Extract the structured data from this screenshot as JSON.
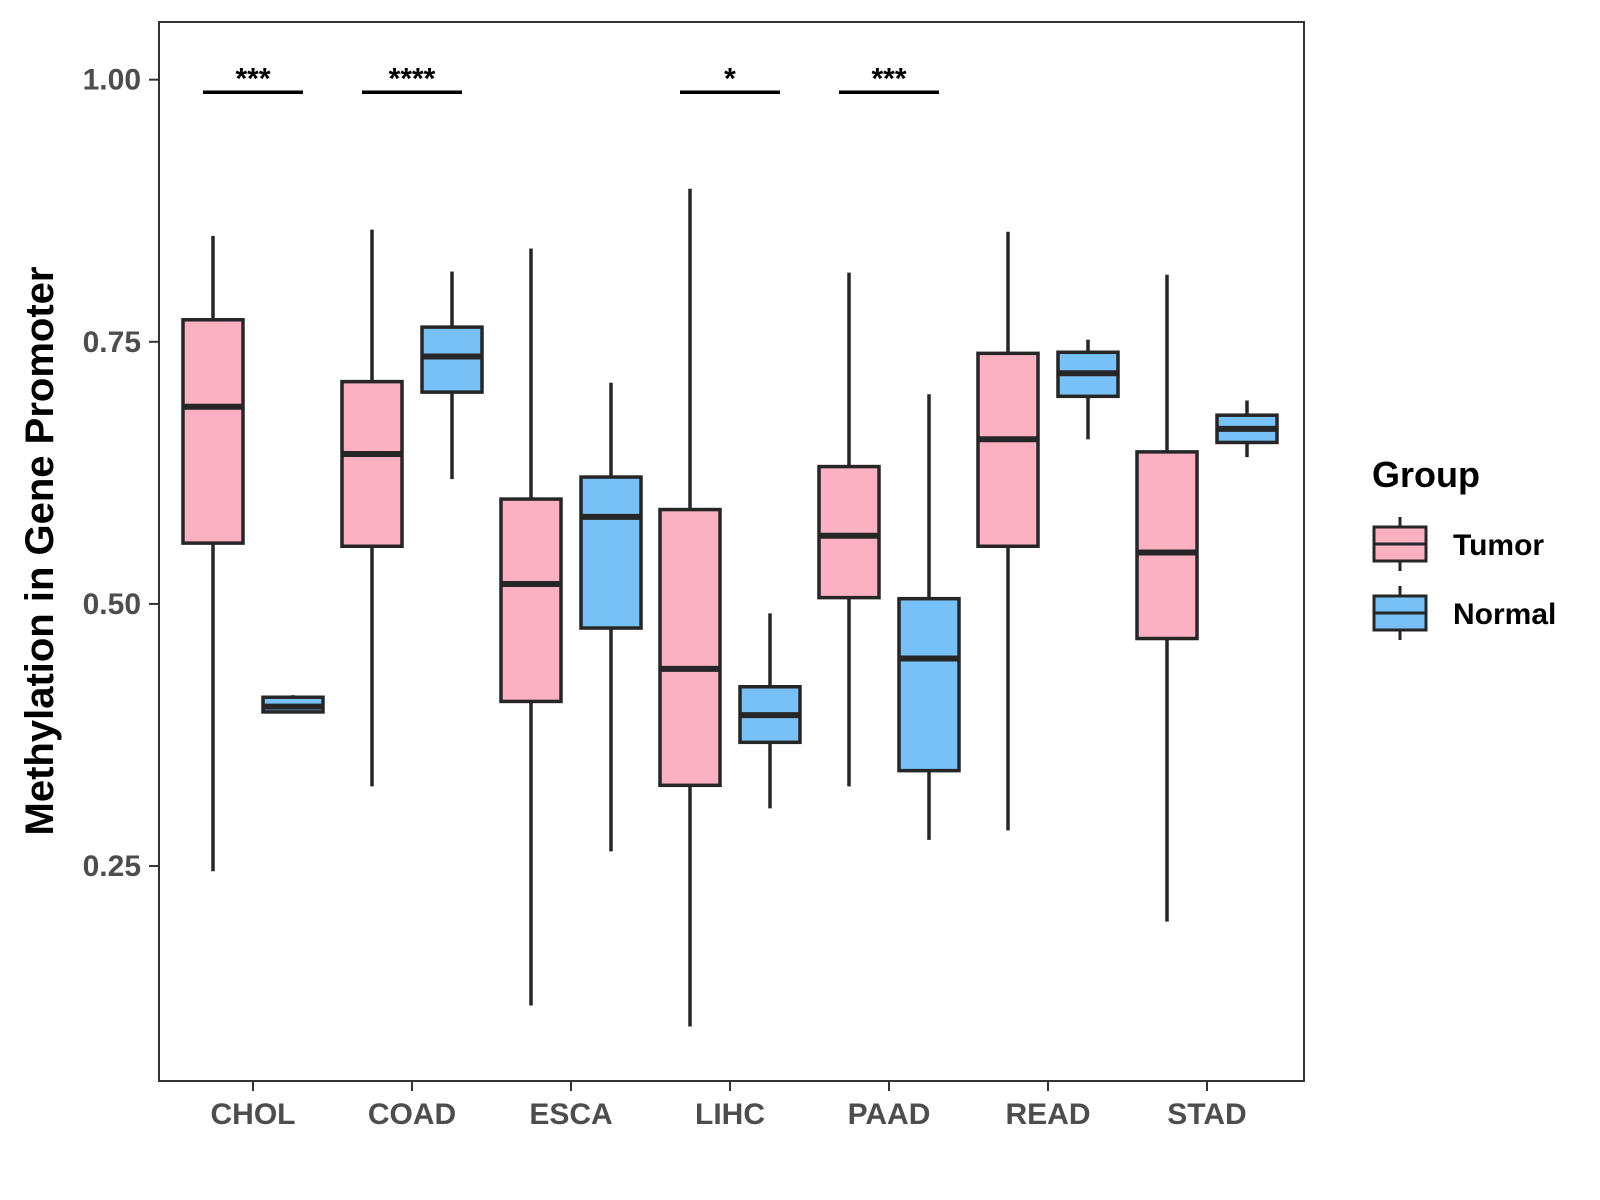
{
  "chart_data": {
    "type": "boxplot",
    "title": "",
    "xlabel": "",
    "ylabel": "Methylation in Gene Promoter",
    "ylim": [
      0.045,
      1.055
    ],
    "yticks": [
      0.25,
      0.5,
      0.75,
      1.0
    ],
    "ytick_labels": [
      "0.25",
      "0.50",
      "0.75",
      "1.00"
    ],
    "categories": [
      "CHOL",
      "COAD",
      "ESCA",
      "LIHC",
      "PAAD",
      "READ",
      "STAD"
    ],
    "legend": {
      "title": "Group",
      "position": "right",
      "entries": [
        {
          "name": "Tumor",
          "color": "#FBB1C1"
        },
        {
          "name": "Normal",
          "color": "#77C1F7"
        }
      ]
    },
    "series": [
      {
        "name": "Tumor",
        "color": "#FBB1C1",
        "boxes": [
          {
            "min": 0.245,
            "q1": 0.558,
            "median": 0.688,
            "q3": 0.771,
            "max": 0.851
          },
          {
            "min": 0.326,
            "q1": 0.555,
            "median": 0.643,
            "q3": 0.712,
            "max": 0.857
          },
          {
            "min": 0.117,
            "q1": 0.407,
            "median": 0.519,
            "q3": 0.6,
            "max": 0.839
          },
          {
            "min": 0.097,
            "q1": 0.327,
            "median": 0.438,
            "q3": 0.59,
            "max": 0.896
          },
          {
            "min": 0.326,
            "q1": 0.506,
            "median": 0.565,
            "q3": 0.631,
            "max": 0.816
          },
          {
            "min": 0.284,
            "q1": 0.555,
            "median": 0.657,
            "q3": 0.739,
            "max": 0.855
          },
          {
            "min": 0.197,
            "q1": 0.467,
            "median": 0.549,
            "q3": 0.645,
            "max": 0.814
          }
        ]
      },
      {
        "name": "Normal",
        "color": "#77C1F7",
        "boxes": [
          {
            "min": 0.397,
            "q1": 0.397,
            "median": 0.402,
            "q3": 0.411,
            "max": 0.413
          },
          {
            "min": 0.619,
            "q1": 0.702,
            "median": 0.736,
            "q3": 0.764,
            "max": 0.817
          },
          {
            "min": 0.264,
            "q1": 0.477,
            "median": 0.583,
            "q3": 0.621,
            "max": 0.711
          },
          {
            "min": 0.305,
            "q1": 0.368,
            "median": 0.394,
            "q3": 0.421,
            "max": 0.491
          },
          {
            "min": 0.275,
            "q1": 0.341,
            "median": 0.448,
            "q3": 0.505,
            "max": 0.7
          },
          {
            "min": 0.657,
            "q1": 0.698,
            "median": 0.72,
            "q3": 0.74,
            "max": 0.752
          },
          {
            "min": 0.64,
            "q1": 0.654,
            "median": 0.667,
            "q3": 0.68,
            "max": 0.694
          }
        ]
      }
    ],
    "significance": [
      {
        "category": "CHOL",
        "label": "***"
      },
      {
        "category": "COAD",
        "label": "****"
      },
      {
        "category": "LIHC",
        "label": "*"
      },
      {
        "category": "PAAD",
        "label": "***"
      }
    ]
  }
}
